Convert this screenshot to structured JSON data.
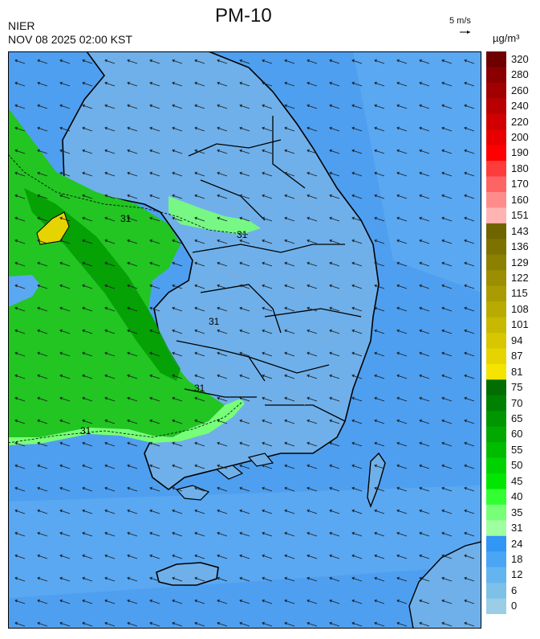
{
  "header": {
    "title": "PM-10",
    "org": "NIER",
    "timestamp": "NOV 08 2025 02:00 KST",
    "wind_scale": "5 m/s",
    "unit": "µg/m³"
  },
  "legend": {
    "labels": [
      "320",
      "280",
      "260",
      "240",
      "220",
      "200",
      "190",
      "180",
      "170",
      "160",
      "151",
      "143",
      "136",
      "129",
      "122",
      "115",
      "108",
      "101",
      "94",
      "87",
      "81",
      "75",
      "70",
      "65",
      "60",
      "55",
      "50",
      "45",
      "40",
      "35",
      "31",
      "24",
      "18",
      "12",
      "6",
      "0"
    ],
    "colors": [
      "#6e0000",
      "#8a0000",
      "#a00000",
      "#b80000",
      "#d00000",
      "#e80000",
      "#ff0000",
      "#ff3c3c",
      "#ff6464",
      "#ff8c8c",
      "#ffb4b4",
      "#6e6400",
      "#7d7200",
      "#8c8000",
      "#9b8e00",
      "#aa9c00",
      "#b9aa00",
      "#c8b800",
      "#d7c600",
      "#e6d400",
      "#f5e300",
      "#006e00",
      "#008000",
      "#009600",
      "#00a800",
      "#00bc00",
      "#00d200",
      "#00e600",
      "#32ff32",
      "#78ff78",
      "#a0ffa0",
      "#3296f5",
      "#4ba5f5",
      "#64b4f0",
      "#7dc0e8",
      "#9bcde6"
    ]
  },
  "contour_label": "31",
  "colors": {
    "sea": "#4f9ff0",
    "land": "#6fb0ea",
    "coast": "#000000",
    "green": "#22c522"
  }
}
